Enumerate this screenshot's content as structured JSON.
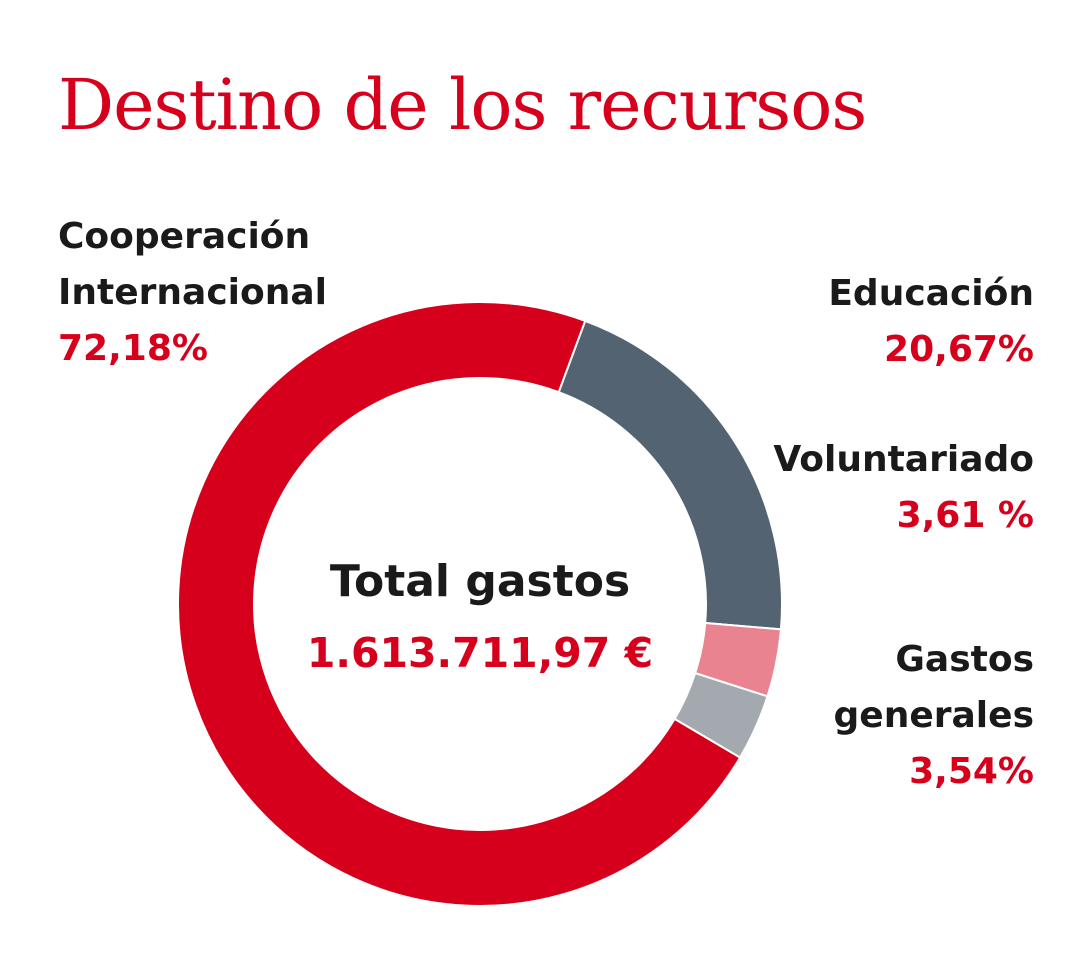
{
  "colors": {
    "accent": "#d6001c",
    "text": "#1a1a1a"
  },
  "chart_data": {
    "type": "pie",
    "title": "Destino de los recursos",
    "center": {
      "title": "Total gastos",
      "value": "1.613.711,97 €"
    },
    "slices": [
      {
        "name_lines": [
          "Cooperación",
          "Internacional"
        ],
        "value": 72.18,
        "label": "72,18%",
        "color": "#d6001c"
      },
      {
        "name_lines": [
          "Educación"
        ],
        "value": 20.67,
        "label": "20,67%",
        "color": "#536372"
      },
      {
        "name_lines": [
          "Voluntariado"
        ],
        "value": 3.61,
        "label": "3,61 %",
        "color": "#ea8390"
      },
      {
        "name_lines": [
          "Gastos",
          "generales"
        ],
        "value": 3.54,
        "label": "3,54%",
        "color": "#a4a9b0"
      }
    ]
  }
}
